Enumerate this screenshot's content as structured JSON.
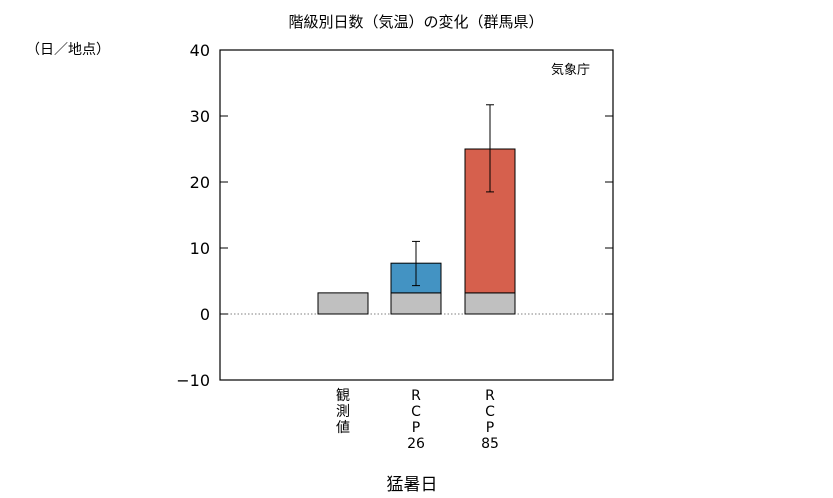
{
  "chart_data": {
    "type": "bar",
    "title": "階級別日数（気温）の変化（群馬県）",
    "ylabel": "（日／地点）",
    "xlabel": "猛暑日",
    "source": "気象庁",
    "ylim": [
      -10,
      40
    ],
    "yticks": [
      -10,
      0,
      10,
      20,
      30,
      40
    ],
    "grid": false,
    "categories": [
      {
        "label_lines": [
          "観",
          "測",
          "値"
        ]
      },
      {
        "label_lines": [
          "R",
          "C",
          "P",
          "26"
        ]
      },
      {
        "label_lines": [
          "R",
          "C",
          "P",
          "85"
        ]
      }
    ],
    "series": [
      {
        "role": "observed-base",
        "color": "#c0c0c0",
        "values": [
          3.2,
          3.2,
          3.2
        ]
      },
      {
        "role": "projected-increase",
        "values": [
          null,
          4.5,
          21.8
        ],
        "colors": [
          null,
          "#4393c3",
          "#d6604d"
        ],
        "error_low": [
          null,
          4.3,
          18.5
        ],
        "error_high": [
          null,
          11.0,
          31.7
        ]
      }
    ]
  }
}
